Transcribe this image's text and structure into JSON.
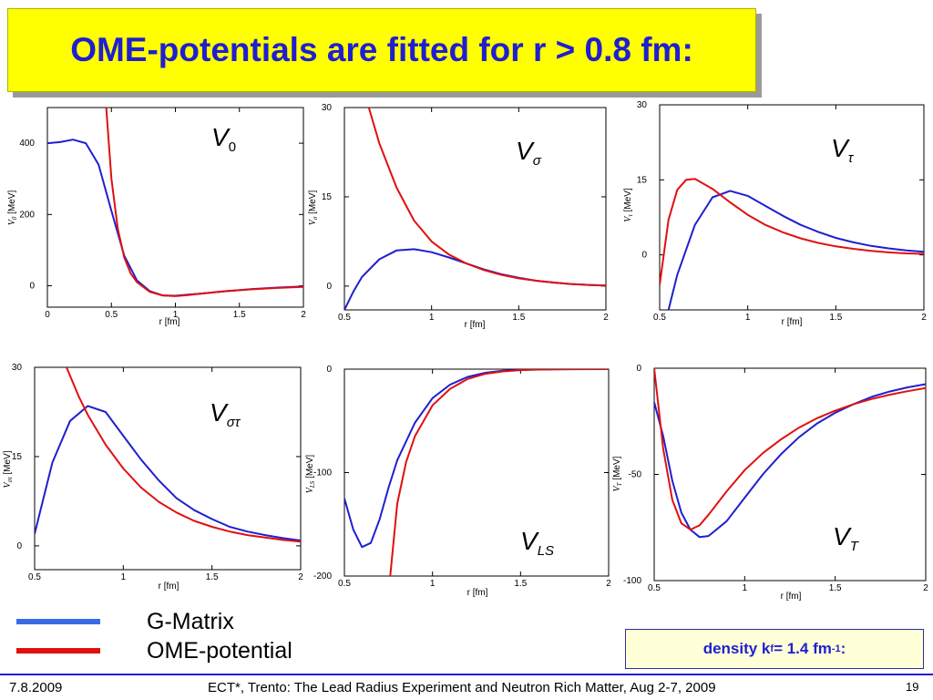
{
  "title": "OME-potentials are fitted for r > 0.8 fm:",
  "colors": {
    "g_matrix": "#1f1fd0",
    "ome": "#e01010",
    "title_bg": "#ffff00",
    "title_text": "#1f1fd0"
  },
  "legend": {
    "items": [
      {
        "label": "G-Matrix",
        "color": "#3a6be6"
      },
      {
        "label": "OME-potential",
        "color": "#e01010"
      }
    ]
  },
  "density": {
    "prefix": "density k",
    "sub": "f",
    "mid": " = 1.4 fm",
    "sup": "-1",
    "suffix": ":"
  },
  "footer": {
    "date": "7.8.2009",
    "center": "ECT*, Trento: The Lead Radius Experiment and Neutron Rich Matter, Aug 2-7, 2009",
    "page": "19"
  },
  "chart_data": [
    {
      "type": "line",
      "label_base": "V",
      "label_sub": "0",
      "xlabel": "r [fm]",
      "ylabel_base": "V",
      "ylabel_sub": "0",
      "ylabel_unit": " [MeV]",
      "xlim": [
        0,
        2
      ],
      "ylim": [
        -60,
        500
      ],
      "xticks": [
        0,
        0.5,
        1,
        1.5,
        2
      ],
      "xtick_labels": [
        "0",
        "0.5",
        "1",
        "1.5",
        "2"
      ],
      "yticks": [
        0,
        200,
        400
      ],
      "ytick_labels": [
        "0",
        "200",
        "400"
      ],
      "series": [
        {
          "color": "#1f1fd0",
          "x": [
            0,
            0.1,
            0.2,
            0.3,
            0.4,
            0.5,
            0.6,
            0.7,
            0.8,
            0.9,
            1.0,
            1.1,
            1.2,
            1.4,
            1.6,
            1.8,
            2.0
          ],
          "y": [
            400,
            403,
            410,
            400,
            340,
            210,
            85,
            15,
            -15,
            -27,
            -28,
            -25,
            -22,
            -15,
            -9,
            -5,
            -2
          ]
        },
        {
          "color": "#e01010",
          "x": [
            0.46,
            0.5,
            0.55,
            0.6,
            0.65,
            0.7,
            0.8,
            0.9,
            1.0,
            1.1,
            1.2,
            1.4,
            1.6,
            1.8,
            2.0
          ],
          "y": [
            500,
            300,
            160,
            80,
            35,
            10,
            -17,
            -27,
            -29,
            -26,
            -22,
            -15,
            -10,
            -6,
            -3
          ]
        }
      ]
    },
    {
      "type": "line",
      "label_base": "V",
      "label_sub": "σ",
      "xlabel": "r [fm]",
      "ylabel_base": "V",
      "ylabel_sub": "σ",
      "ylabel_unit": " [MeV]",
      "xlim": [
        0.5,
        2
      ],
      "ylim": [
        -4,
        30
      ],
      "xticks": [
        0.5,
        1,
        1.5,
        2
      ],
      "xtick_labels": [
        "0.5",
        "1",
        "1.5",
        "2"
      ],
      "yticks": [
        0,
        15,
        30
      ],
      "ytick_labels": [
        "0",
        "15",
        "30"
      ],
      "series": [
        {
          "color": "#1f1fd0",
          "x": [
            0.5,
            0.55,
            0.6,
            0.7,
            0.8,
            0.9,
            1.0,
            1.1,
            1.2,
            1.3,
            1.4,
            1.5,
            1.6,
            1.7,
            1.8,
            1.9,
            2.0
          ],
          "y": [
            -4,
            -1,
            1.5,
            4.5,
            6.0,
            6.2,
            5.7,
            4.8,
            3.8,
            2.8,
            2.0,
            1.4,
            0.9,
            0.6,
            0.35,
            0.2,
            0.1
          ]
        },
        {
          "color": "#e01010",
          "x": [
            0.64,
            0.7,
            0.8,
            0.9,
            1.0,
            1.1,
            1.2,
            1.3,
            1.4,
            1.5,
            1.6,
            1.7,
            1.8,
            1.9,
            2.0
          ],
          "y": [
            30,
            24,
            16.5,
            11,
            7.5,
            5.3,
            3.8,
            2.7,
            1.9,
            1.3,
            0.9,
            0.6,
            0.35,
            0.2,
            0.1
          ]
        }
      ]
    },
    {
      "type": "line",
      "label_base": "V",
      "label_sub": "τ",
      "xlabel": "r [fm]",
      "ylabel_base": "V",
      "ylabel_sub": "τ",
      "ylabel_unit": " [MeV]",
      "xlim": [
        0.5,
        2
      ],
      "ylim": [
        -11,
        30
      ],
      "xticks": [
        0.5,
        1,
        1.5,
        2
      ],
      "xtick_labels": [
        "0.5",
        "1",
        "1.5",
        "2"
      ],
      "yticks": [
        0,
        15,
        30
      ],
      "ytick_labels": [
        "0",
        "15",
        "30"
      ],
      "series": [
        {
          "color": "#1f1fd0",
          "x": [
            0.55,
            0.6,
            0.7,
            0.8,
            0.9,
            1.0,
            1.1,
            1.2,
            1.3,
            1.4,
            1.5,
            1.6,
            1.7,
            1.8,
            1.9,
            2.0
          ],
          "y": [
            -11,
            -4,
            6,
            11.5,
            12.8,
            11.8,
            9.8,
            7.8,
            6.0,
            4.6,
            3.4,
            2.5,
            1.8,
            1.3,
            0.9,
            0.6
          ]
        },
        {
          "color": "#e01010",
          "x": [
            0.5,
            0.55,
            0.6,
            0.65,
            0.7,
            0.8,
            0.9,
            1.0,
            1.1,
            1.2,
            1.3,
            1.4,
            1.5,
            1.6,
            1.7,
            1.8,
            1.9,
            2.0
          ],
          "y": [
            -6,
            7,
            13,
            15.0,
            15.2,
            13.2,
            10.5,
            8.0,
            6.0,
            4.5,
            3.3,
            2.4,
            1.7,
            1.2,
            0.8,
            0.5,
            0.3,
            0.2
          ]
        }
      ]
    },
    {
      "type": "line",
      "label_base": "V",
      "label_sub": "στ",
      "xlabel": "r [fm]",
      "ylabel_base": "V",
      "ylabel_sub": "στ",
      "ylabel_unit": " [MeV]",
      "xlim": [
        0.5,
        2
      ],
      "ylim": [
        -4,
        30
      ],
      "xticks": [
        0.5,
        1,
        1.5,
        2
      ],
      "xtick_labels": [
        "0.5",
        "1",
        "1.5",
        "2"
      ],
      "yticks": [
        0,
        15,
        30
      ],
      "ytick_labels": [
        "0",
        "15",
        "30"
      ],
      "series": [
        {
          "color": "#1f1fd0",
          "x": [
            0.5,
            0.55,
            0.6,
            0.7,
            0.8,
            0.9,
            1.0,
            1.1,
            1.2,
            1.3,
            1.4,
            1.5,
            1.6,
            1.7,
            1.8,
            1.9,
            2.0
          ],
          "y": [
            2,
            8,
            14,
            21,
            23.5,
            22.5,
            18.5,
            14.5,
            11,
            8,
            6,
            4.5,
            3.2,
            2.4,
            1.8,
            1.3,
            0.9
          ]
        },
        {
          "color": "#e01010",
          "x": [
            0.68,
            0.75,
            0.8,
            0.9,
            1.0,
            1.1,
            1.2,
            1.3,
            1.4,
            1.5,
            1.6,
            1.7,
            1.8,
            1.9,
            2.0
          ],
          "y": [
            30,
            25,
            22,
            17,
            13,
            9.8,
            7.4,
            5.6,
            4.2,
            3.2,
            2.4,
            1.8,
            1.4,
            1.0,
            0.7
          ]
        }
      ]
    },
    {
      "type": "line",
      "label_base": "V",
      "label_sub": "LS",
      "xlabel": "r [fm]",
      "ylabel_base": "V",
      "ylabel_sub": "LS",
      "ylabel_unit": " [MeV]",
      "xlim": [
        0.5,
        2
      ],
      "ylim": [
        -200,
        0
      ],
      "xticks": [
        0.5,
        1,
        1.5,
        2
      ],
      "xtick_labels": [
        "0.5",
        "1",
        "1.5",
        "2"
      ],
      "yticks": [
        -200,
        -100,
        0
      ],
      "ytick_labels": [
        "-200",
        "-100",
        "0"
      ],
      "series": [
        {
          "color": "#1f1fd0",
          "x": [
            0.5,
            0.55,
            0.6,
            0.65,
            0.7,
            0.75,
            0.8,
            0.9,
            1.0,
            1.1,
            1.2,
            1.3,
            1.4,
            1.5,
            1.6,
            1.7,
            1.8,
            2.0
          ],
          "y": [
            -125,
            -155,
            -172,
            -168,
            -145,
            -115,
            -88,
            -52,
            -28,
            -15,
            -7.5,
            -3.5,
            -1.6,
            -0.7,
            -0.3,
            -0.1,
            0,
            0
          ]
        },
        {
          "color": "#e01010",
          "x": [
            0.76,
            0.8,
            0.85,
            0.9,
            1.0,
            1.1,
            1.2,
            1.3,
            1.4,
            1.5,
            1.6,
            1.7,
            1.8,
            2.0
          ],
          "y": [
            -200,
            -130,
            -90,
            -65,
            -35,
            -19,
            -9.5,
            -4.5,
            -2.2,
            -1.0,
            -0.4,
            -0.15,
            -0.05,
            0
          ]
        }
      ]
    },
    {
      "type": "line",
      "label_base": "V",
      "label_sub": "T",
      "xlabel": "r [fm]",
      "ylabel_base": "V",
      "ylabel_sub": "T",
      "ylabel_unit": " [MeV]",
      "xlim": [
        0.5,
        2
      ],
      "ylim": [
        -100,
        0
      ],
      "xticks": [
        0.5,
        1,
        1.5,
        2
      ],
      "xtick_labels": [
        "0.5",
        "1",
        "1.5",
        "2"
      ],
      "yticks": [
        -100,
        -50,
        0
      ],
      "ytick_labels": [
        "-100",
        "-50",
        "0"
      ],
      "series": [
        {
          "color": "#1f1fd0",
          "x": [
            0.5,
            0.55,
            0.6,
            0.65,
            0.7,
            0.75,
            0.8,
            0.9,
            1.0,
            1.1,
            1.2,
            1.3,
            1.4,
            1.5,
            1.6,
            1.7,
            1.8,
            1.9,
            2.0
          ],
          "y": [
            -16,
            -32,
            -53,
            -68,
            -76,
            -79.5,
            -79,
            -72,
            -61,
            -50,
            -40.5,
            -32.5,
            -26,
            -21,
            -17,
            -13.5,
            -11,
            -9,
            -7.5
          ]
        },
        {
          "color": "#e01010",
          "x": [
            0.5,
            0.55,
            0.6,
            0.65,
            0.7,
            0.75,
            0.8,
            0.9,
            1.0,
            1.1,
            1.2,
            1.3,
            1.4,
            1.5,
            1.6,
            1.7,
            1.8,
            1.9,
            2.0
          ],
          "y": [
            0,
            -38,
            -62,
            -73,
            -76,
            -74,
            -69,
            -58,
            -48,
            -40,
            -33.5,
            -28,
            -23.5,
            -20,
            -17,
            -14.5,
            -12.5,
            -10.8,
            -9.3
          ]
        }
      ]
    }
  ]
}
